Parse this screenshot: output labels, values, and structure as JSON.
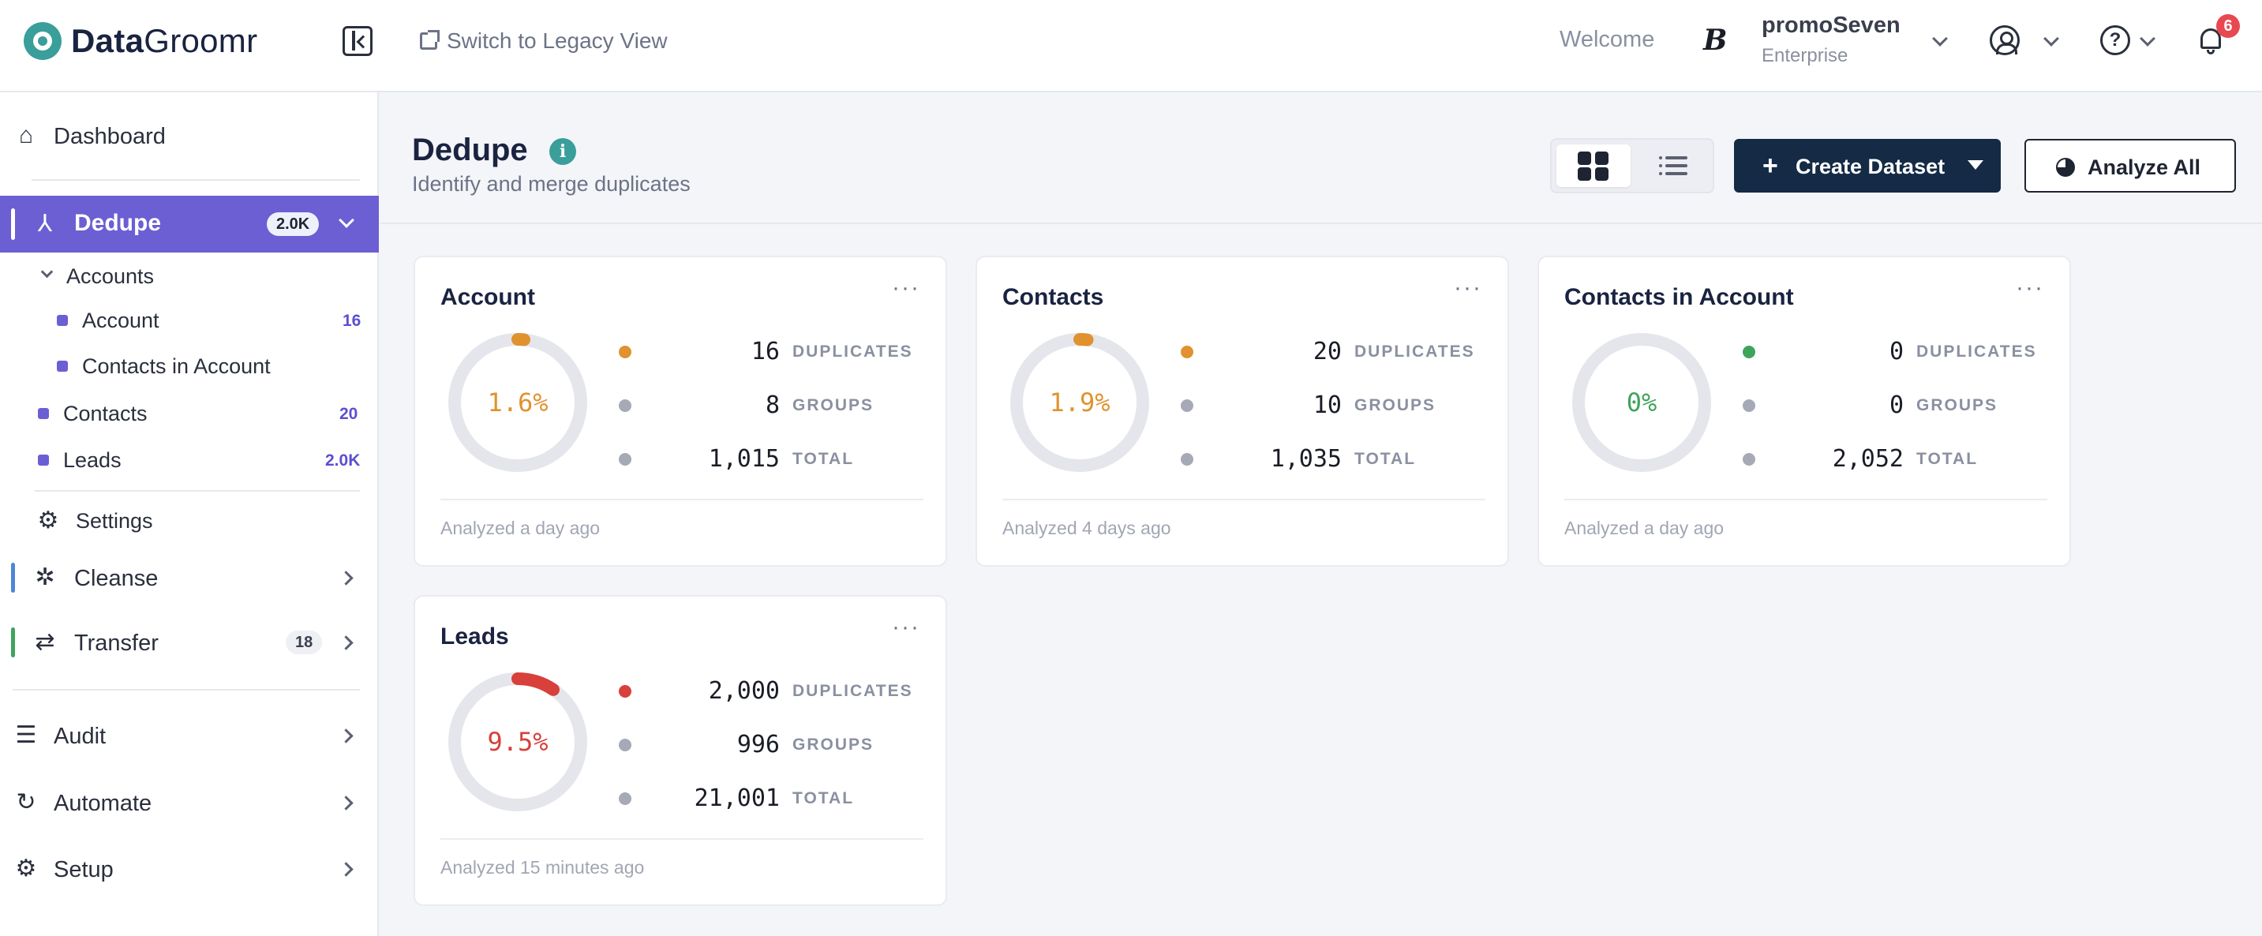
{
  "app": {
    "logo_bold": "Data",
    "logo_rest": "Groomr"
  },
  "header": {
    "legacy_link": "Switch to Legacy View",
    "welcome": "Welcome",
    "user_name": "promoSeven",
    "user_plan": "Enterprise",
    "notification_count": "6"
  },
  "sidebar": {
    "dashboard": "Dashboard",
    "dedupe": {
      "label": "Dedupe",
      "badge": "2.0K"
    },
    "accounts_group": "Accounts",
    "sub_items": [
      {
        "label": "Account",
        "count": "16"
      },
      {
        "label": "Contacts in Account",
        "count": ""
      },
      {
        "label": "Contacts",
        "count": "20"
      },
      {
        "label": "Leads",
        "count": "2.0K"
      }
    ],
    "settings": "Settings",
    "cleanse": "Cleanse",
    "transfer": {
      "label": "Transfer",
      "badge": "18"
    },
    "audit": "Audit",
    "automate": "Automate",
    "setup": "Setup"
  },
  "page": {
    "title": "Dedupe",
    "subtitle": "Identify and merge duplicates",
    "create_button": "Create Dataset",
    "analyze_button": "Analyze All"
  },
  "stat_labels": {
    "duplicates": "DUPLICATES",
    "groups": "GROUPS",
    "total": "TOTAL"
  },
  "cards": [
    {
      "title": "Account",
      "pct": "1.6%",
      "pct_value": 0.016,
      "color": "#e0922f",
      "duplicates": "16",
      "groups": "8",
      "total": "1,015",
      "analyzed": "Analyzed a day ago"
    },
    {
      "title": "Contacts",
      "pct": "1.9%",
      "pct_value": 0.019,
      "color": "#e0922f",
      "duplicates": "20",
      "groups": "10",
      "total": "1,035",
      "analyzed": "Analyzed 4 days ago"
    },
    {
      "title": "Contacts in Account",
      "pct": "0%",
      "pct_value": 0,
      "color": "#3fa45b",
      "duplicates": "0",
      "groups": "0",
      "total": "2,052",
      "analyzed": "Analyzed a day ago"
    },
    {
      "title": "Leads",
      "pct": "9.5%",
      "pct_value": 0.095,
      "color": "#d8403b",
      "duplicates": "2,000",
      "groups": "996",
      "total": "21,001",
      "analyzed": "Analyzed 15 minutes ago"
    }
  ],
  "colors": {
    "accent": "#6b5fd3",
    "primary_button": "#142a45",
    "brand_teal": "#3a9e9a"
  }
}
